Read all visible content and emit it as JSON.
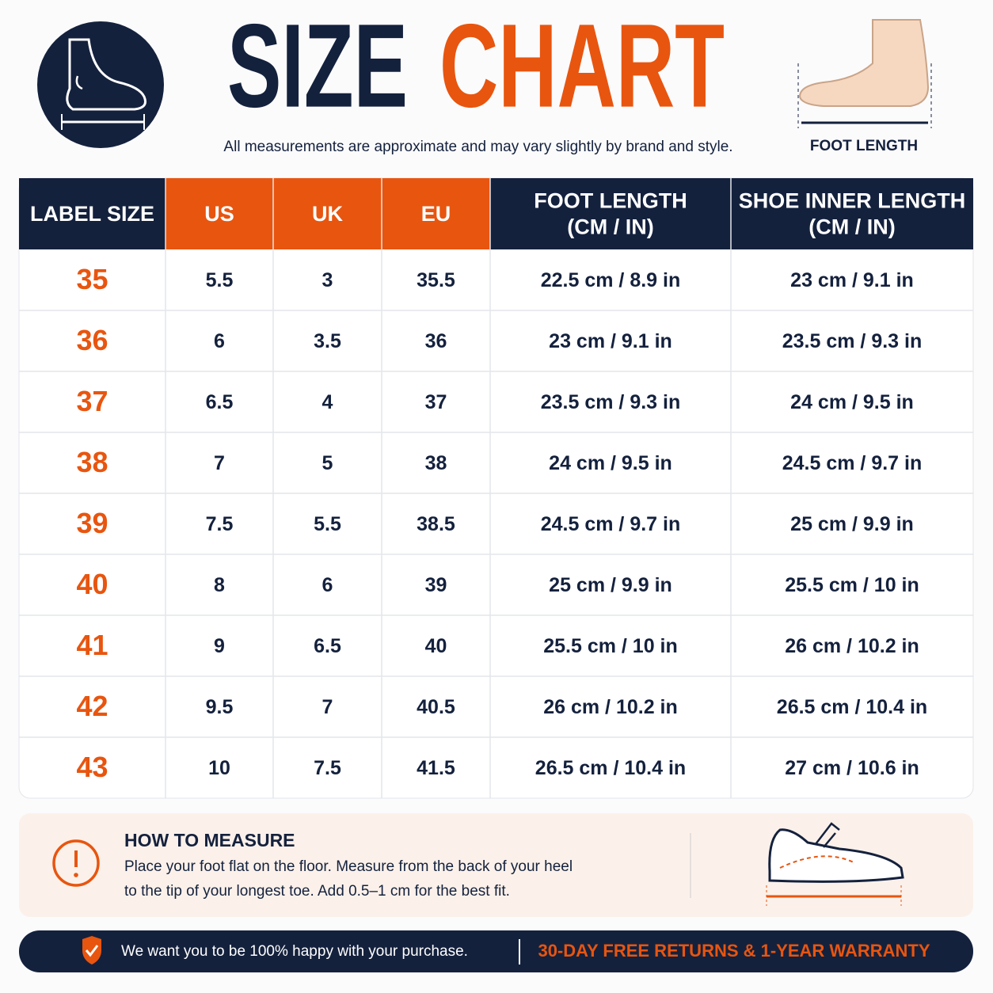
{
  "header": {
    "title_first": "SIZE",
    "title_second": "CHART",
    "subtitle": "All measurements are approximate and may vary slightly by brand and style.",
    "foot_caption": "FOOT LENGTH"
  },
  "table": {
    "columns": [
      [
        "LABEL SIZE"
      ],
      [
        "US"
      ],
      [
        "UK"
      ],
      [
        "EU"
      ],
      [
        "FOOT LENGTH",
        "(CM / IN)"
      ],
      [
        "SHOE INNER LENGTH",
        "(CM / IN)"
      ]
    ],
    "rows": [
      [
        "35",
        "5.5",
        "3",
        "35.5",
        "22.5 cm / 8.9 in",
        "23 cm / 9.1 in"
      ],
      [
        "36",
        "6",
        "3.5",
        "36",
        "23 cm / 9.1 in",
        "23.5 cm / 9.3 in"
      ],
      [
        "37",
        "6.5",
        "4",
        "37",
        "23.5 cm / 9.3 in",
        "24 cm / 9.5 in"
      ],
      [
        "38",
        "7",
        "5",
        "38",
        "24 cm / 9.5 in",
        "24.5 cm / 9.7 in"
      ],
      [
        "39",
        "7.5",
        "5.5",
        "38.5",
        "24.5 cm / 9.7 in",
        "25 cm / 9.9 in"
      ],
      [
        "40",
        "8",
        "6",
        "39",
        "25 cm / 9.9 in",
        "25.5 cm / 10 in"
      ],
      [
        "41",
        "9",
        "6.5",
        "40",
        "25.5 cm / 10 in",
        "26 cm / 10.2 in"
      ],
      [
        "42",
        "9.5",
        "7",
        "40.5",
        "26 cm / 10.2 in",
        "26.5 cm / 10.4 in"
      ],
      [
        "43",
        "10",
        "7.5",
        "41.5",
        "26.5 cm / 10.4 in",
        "27 cm / 10.6 in"
      ]
    ]
  },
  "measure": {
    "title": "HOW TO MEASURE",
    "lines": [
      "Place your foot flat on the floor. Measure from the back of your heel",
      "to the tip of your longest toe. Add 0.5–1 cm for the best fit."
    ]
  },
  "footer": {
    "left": "We want you to be 100% happy with your purchase.",
    "right": "30-DAY FREE RETURNS & 1-YEAR WARRANTY"
  }
}
